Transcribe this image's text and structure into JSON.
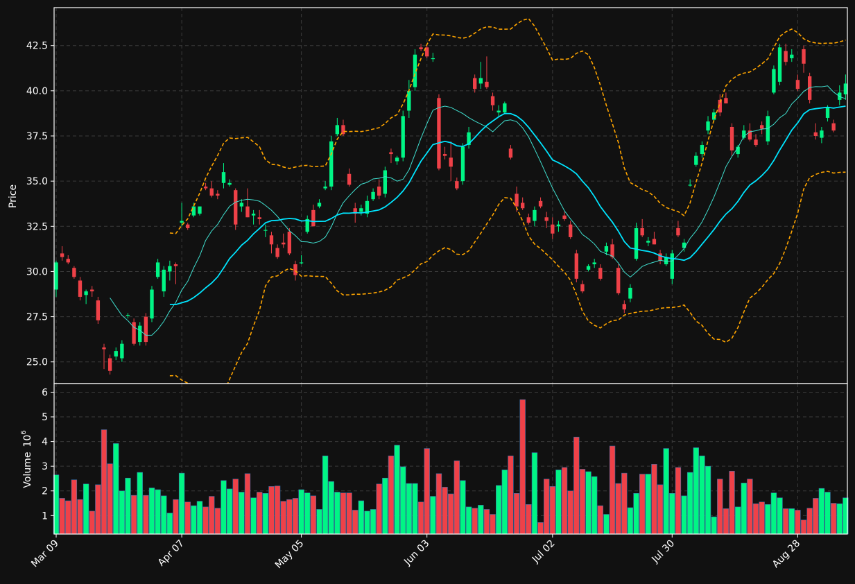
{
  "chart_data": {
    "type": "candlestick",
    "price_axis": {
      "label": "Price",
      "ylim": [
        23.8,
        44.6
      ],
      "ticks": [
        "25.0",
        "27.5",
        "30.0",
        "32.5",
        "35.0",
        "37.5",
        "40.0",
        "42.5"
      ]
    },
    "volume_axis": {
      "label": "Volume",
      "exponent": "6",
      "ylim": [
        0.25,
        6.35
      ],
      "ticks": [
        "1",
        "2",
        "3",
        "4",
        "5",
        "6"
      ]
    },
    "x_ticks": [
      {
        "label": "Mar 09",
        "index": 0
      },
      {
        "label": "Apr 07",
        "index": 21
      },
      {
        "label": "May 05",
        "index": 41
      },
      {
        "label": "Jun 03",
        "index": 62
      },
      {
        "label": "Jul 02",
        "index": 83
      },
      {
        "label": "Jul 30",
        "index": 103
      },
      {
        "label": "Aug 28",
        "index": 124
      }
    ],
    "grid": true,
    "colors": {
      "up": "#00f585",
      "down": "#ef4148",
      "sma_short": "#40e0d0",
      "sma_long": "#00e5ff",
      "bands": "#ffa500",
      "background": "#111111"
    },
    "candles": [
      [
        29.0,
        30.6,
        28.6,
        30.5,
        2.65
      ],
      [
        31.0,
        31.4,
        30.6,
        30.8,
        1.7
      ],
      [
        30.7,
        30.9,
        30.4,
        30.5,
        1.6
      ],
      [
        30.2,
        30.3,
        29.6,
        29.7,
        2.45
      ],
      [
        29.5,
        29.7,
        28.4,
        28.6,
        1.65
      ],
      [
        28.7,
        29.0,
        28.2,
        28.9,
        2.28
      ],
      [
        29.0,
        29.2,
        28.6,
        28.9,
        1.18
      ],
      [
        28.4,
        28.6,
        27.1,
        27.3,
        2.25
      ],
      [
        25.8,
        26.0,
        24.6,
        25.7,
        4.48
      ],
      [
        25.2,
        25.4,
        24.3,
        24.5,
        3.1
      ],
      [
        25.3,
        25.8,
        25.1,
        25.6,
        3.92
      ],
      [
        25.2,
        26.2,
        25.0,
        26.0,
        2.0
      ],
      [
        27.6,
        27.7,
        27.4,
        27.6,
        2.52
      ],
      [
        27.2,
        27.4,
        25.9,
        26.0,
        1.82
      ],
      [
        26.1,
        27.2,
        25.9,
        27.0,
        2.75
      ],
      [
        27.5,
        27.7,
        25.9,
        26.1,
        1.82
      ],
      [
        27.4,
        29.2,
        27.2,
        29.0,
        2.12
      ],
      [
        29.7,
        30.7,
        29.6,
        30.5,
        2.05
      ],
      [
        28.9,
        30.3,
        28.6,
        30.1,
        1.8
      ],
      [
        30.0,
        30.6,
        29.5,
        30.3,
        1.1
      ],
      [
        30.4,
        30.5,
        29.3,
        30.3,
        1.65
      ],
      [
        32.7,
        33.8,
        32.5,
        32.8,
        2.72
      ],
      [
        32.6,
        32.7,
        32.3,
        32.4,
        1.55
      ],
      [
        33.1,
        33.8,
        33.0,
        33.6,
        1.4
      ],
      [
        33.2,
        33.6,
        33.1,
        33.6,
        1.58
      ],
      [
        34.7,
        34.9,
        34.5,
        34.6,
        1.35
      ],
      [
        34.6,
        35.0,
        34.1,
        34.2,
        1.78
      ],
      [
        34.3,
        34.5,
        34.0,
        34.2,
        1.3
      ],
      [
        34.9,
        36.0,
        34.6,
        35.5,
        2.42
      ],
      [
        34.8,
        35.1,
        34.7,
        34.9,
        2.08
      ],
      [
        34.5,
        34.6,
        32.3,
        32.6,
        2.48
      ],
      [
        33.6,
        34.0,
        33.3,
        33.8,
        1.95
      ],
      [
        33.6,
        34.6,
        33.0,
        33.0,
        2.7
      ],
      [
        33.1,
        33.4,
        32.6,
        33.2,
        1.72
      ],
      [
        33.0,
        33.4,
        32.6,
        32.9,
        1.95
      ],
      [
        32.3,
        32.6,
        31.9,
        32.3,
        1.9
      ],
      [
        32.0,
        32.2,
        31.0,
        31.5,
        2.18
      ],
      [
        31.3,
        31.5,
        30.7,
        30.8,
        2.2
      ],
      [
        31.6,
        32.1,
        31.3,
        31.5,
        1.58
      ],
      [
        32.2,
        32.4,
        30.9,
        31.0,
        1.65
      ],
      [
        30.4,
        30.6,
        29.5,
        29.8,
        1.7
      ],
      [
        30.5,
        30.9,
        30.4,
        30.5,
        2.05
      ],
      [
        32.2,
        33.1,
        32.1,
        32.9,
        1.92
      ],
      [
        33.4,
        33.7,
        32.5,
        32.5,
        1.8
      ],
      [
        33.6,
        34.0,
        33.5,
        33.8,
        1.25
      ],
      [
        34.6,
        35.0,
        34.5,
        34.7,
        3.42
      ],
      [
        34.7,
        37.5,
        34.5,
        37.2,
        2.38
      ],
      [
        37.6,
        38.5,
        37.5,
        38.1,
        1.95
      ],
      [
        38.1,
        38.4,
        37.5,
        37.6,
        1.92
      ],
      [
        35.4,
        35.7,
        34.7,
        34.8,
        1.92
      ],
      [
        33.5,
        33.8,
        32.7,
        33.2,
        1.22
      ],
      [
        33.3,
        33.7,
        33.1,
        33.5,
        1.6
      ],
      [
        33.2,
        34.2,
        33.0,
        33.9,
        1.18
      ],
      [
        34.0,
        34.6,
        33.9,
        34.4,
        1.25
      ],
      [
        34.7,
        35.1,
        34.0,
        34.2,
        2.28
      ],
      [
        34.3,
        35.8,
        34.1,
        35.6,
        2.52
      ],
      [
        36.6,
        36.8,
        36.0,
        36.5,
        3.42
      ],
      [
        36.1,
        36.4,
        35.9,
        36.3,
        3.85
      ],
      [
        36.3,
        38.9,
        36.1,
        38.6,
        2.98
      ],
      [
        38.9,
        40.6,
        38.5,
        40.0,
        2.3
      ],
      [
        40.2,
        42.3,
        40.0,
        42.0,
        2.3
      ],
      [
        42.4,
        42.6,
        42.2,
        42.3,
        1.55
      ],
      [
        42.4,
        42.6,
        41.8,
        41.9,
        3.72
      ],
      [
        41.8,
        42.1,
        41.6,
        41.8,
        1.78
      ],
      [
        39.6,
        39.8,
        35.6,
        35.7,
        2.7
      ],
      [
        36.5,
        36.9,
        36.2,
        36.4,
        2.15
      ],
      [
        36.3,
        37.2,
        35.0,
        35.8,
        1.88
      ],
      [
        35.0,
        35.2,
        34.5,
        34.6,
        3.22
      ],
      [
        35.0,
        37.1,
        34.8,
        36.9,
        2.42
      ],
      [
        37.0,
        38.0,
        36.8,
        37.7,
        1.35
      ],
      [
        40.7,
        40.9,
        39.9,
        40.1,
        1.3
      ],
      [
        40.4,
        41.6,
        40.1,
        40.7,
        1.42
      ],
      [
        40.5,
        41.9,
        40.1,
        40.2,
        1.25
      ],
      [
        39.7,
        39.9,
        38.9,
        39.2,
        1.05
      ],
      [
        38.8,
        39.2,
        38.6,
        38.9,
        2.22
      ],
      [
        38.8,
        39.4,
        38.7,
        39.3,
        2.85
      ],
      [
        36.8,
        37.0,
        36.2,
        36.3,
        3.42
      ],
      [
        34.3,
        34.7,
        33.3,
        33.6,
        1.9
      ],
      [
        33.8,
        34.1,
        33.4,
        33.5,
        5.7
      ],
      [
        33.0,
        33.2,
        32.6,
        32.7,
        1.45
      ],
      [
        32.8,
        33.6,
        32.5,
        33.4,
        3.55
      ],
      [
        33.9,
        34.1,
        33.5,
        33.6,
        0.72
      ],
      [
        33.0,
        33.3,
        32.4,
        32.8,
        2.48
      ],
      [
        32.6,
        33.0,
        31.8,
        32.1,
        2.18
      ],
      [
        32.5,
        32.8,
        32.2,
        32.6,
        2.85
      ],
      [
        33.1,
        33.3,
        32.8,
        32.9,
        2.95
      ],
      [
        32.6,
        32.8,
        31.8,
        31.9,
        2.0
      ],
      [
        31.0,
        31.2,
        29.4,
        29.6,
        4.18
      ],
      [
        29.3,
        29.5,
        28.8,
        28.9,
        2.88
      ],
      [
        30.1,
        30.4,
        30.0,
        30.3,
        2.78
      ],
      [
        30.4,
        30.7,
        30.2,
        30.5,
        2.58
      ],
      [
        30.2,
        30.4,
        29.5,
        29.6,
        1.4
      ],
      [
        31.1,
        31.6,
        30.9,
        31.4,
        1.05
      ],
      [
        31.5,
        31.8,
        30.7,
        30.8,
        3.82
      ],
      [
        30.2,
        30.4,
        28.7,
        28.8,
        2.3
      ],
      [
        28.2,
        28.4,
        27.7,
        27.9,
        2.72
      ],
      [
        28.5,
        29.3,
        28.3,
        29.1,
        1.32
      ],
      [
        30.7,
        32.7,
        30.6,
        32.4,
        1.9
      ],
      [
        32.4,
        32.9,
        31.9,
        32.0,
        2.68
      ],
      [
        31.6,
        31.9,
        31.4,
        31.7,
        2.68
      ],
      [
        31.8,
        32.2,
        31.5,
        31.5,
        3.08
      ],
      [
        31.0,
        31.2,
        30.4,
        30.6,
        2.25
      ],
      [
        30.4,
        31.0,
        30.3,
        30.8,
        3.72
      ],
      [
        29.6,
        31.2,
        29.3,
        31.0,
        1.9
      ],
      [
        32.4,
        32.8,
        31.9,
        32.0,
        2.95
      ],
      [
        31.3,
        31.8,
        31.1,
        31.6,
        1.8
      ],
      [
        34.8,
        35.1,
        34.7,
        34.8,
        2.75
      ],
      [
        35.9,
        36.6,
        35.8,
        36.4,
        3.75
      ],
      [
        36.5,
        37.2,
        36.3,
        37.0,
        3.42
      ],
      [
        37.8,
        38.6,
        37.6,
        38.3,
        3.0
      ],
      [
        38.4,
        39.0,
        38.3,
        38.8,
        0.95
      ],
      [
        39.5,
        39.8,
        38.6,
        38.8,
        2.48
      ],
      [
        39.6,
        39.9,
        39.3,
        39.3,
        1.28
      ],
      [
        38.0,
        38.2,
        36.4,
        36.7,
        2.8
      ],
      [
        36.5,
        37.0,
        36.3,
        36.9,
        1.35
      ],
      [
        37.4,
        38.1,
        37.3,
        37.8,
        2.32
      ],
      [
        37.8,
        38.2,
        37.2,
        37.3,
        2.48
      ],
      [
        37.3,
        37.6,
        36.9,
        37.0,
        1.48
      ],
      [
        38.1,
        38.3,
        37.6,
        37.9,
        1.55
      ],
      [
        37.2,
        38.9,
        37.0,
        38.6,
        1.45
      ],
      [
        39.9,
        41.4,
        39.8,
        41.2,
        1.92
      ],
      [
        40.5,
        42.6,
        40.3,
        42.4,
        1.72
      ],
      [
        42.2,
        42.6,
        41.4,
        41.6,
        1.28
      ],
      [
        41.8,
        42.3,
        41.6,
        42.0,
        1.28
      ],
      [
        40.6,
        40.9,
        40.0,
        40.1,
        1.22
      ],
      [
        42.3,
        42.5,
        41.0,
        41.5,
        0.82
      ],
      [
        40.8,
        41.0,
        39.3,
        39.5,
        1.3
      ],
      [
        37.7,
        38.2,
        37.3,
        37.5,
        1.7
      ],
      [
        37.4,
        38.0,
        37.1,
        37.8,
        2.1
      ],
      [
        38.5,
        39.2,
        38.3,
        39.1,
        1.95
      ],
      [
        38.2,
        38.4,
        37.7,
        37.8,
        1.5
      ],
      [
        39.5,
        40.3,
        39.2,
        39.9,
        1.48
      ],
      [
        39.8,
        40.9,
        39.5,
        40.4,
        1.72
      ]
    ]
  }
}
